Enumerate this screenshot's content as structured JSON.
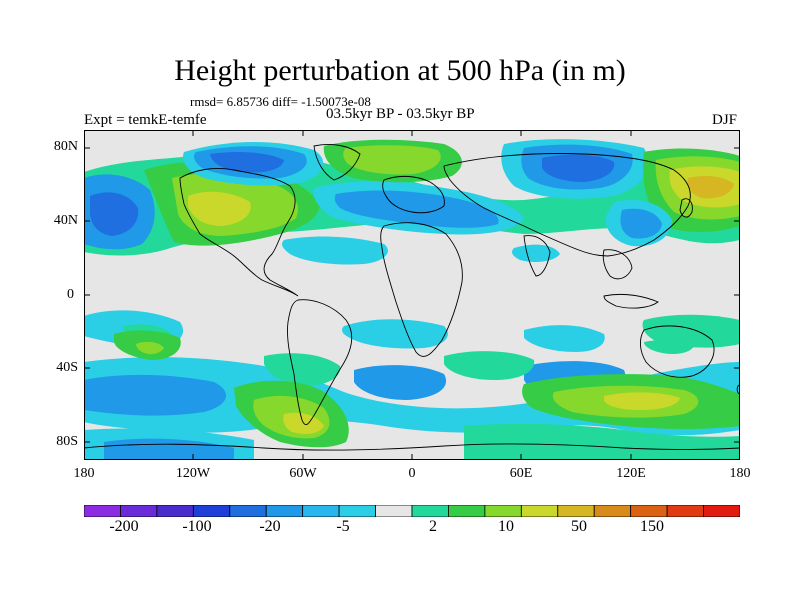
{
  "title": "Height perturbation at 500 hPa (in m)",
  "stats": "rmsd= 6.85736 diff= -1.50073e-08",
  "experiment": "Expt = temkE-temfe",
  "period": "03.5kyr BP - 03.5kyr BP",
  "season": "DJF",
  "lat_labels": [
    "80N",
    "40N",
    "0",
    "40S",
    "80S"
  ],
  "lon_labels": [
    "180",
    "120W",
    "60W",
    "0",
    "60E",
    "120E",
    "180"
  ],
  "colorbar": {
    "colors": [
      "#8b2be2",
      "#6a2bd8",
      "#4a2ccc",
      "#1e3fd8",
      "#1f6fe0",
      "#1f99e8",
      "#27b6ee",
      "#2acfe6",
      "#e6e6e6",
      "#22d89a",
      "#36cc45",
      "#86d82d",
      "#c9d82a",
      "#d6b622",
      "#d88a1a",
      "#db6212",
      "#e23a10",
      "#e21a10"
    ],
    "labels": [
      "-200",
      "-100",
      "-20",
      "-5",
      "2",
      "10",
      "50",
      "150"
    ]
  },
  "legend_colors": {
    "neutral": "#e6e6e6",
    "deep_blue": "#1f6fe0",
    "blue": "#1f99e8",
    "light_blue": "#2acfe6",
    "green_cyan": "#22d89a",
    "green": "#36cc45",
    "yellow_green": "#86d82d",
    "yellow": "#c9d82a",
    "orange": "#d6b622"
  }
}
